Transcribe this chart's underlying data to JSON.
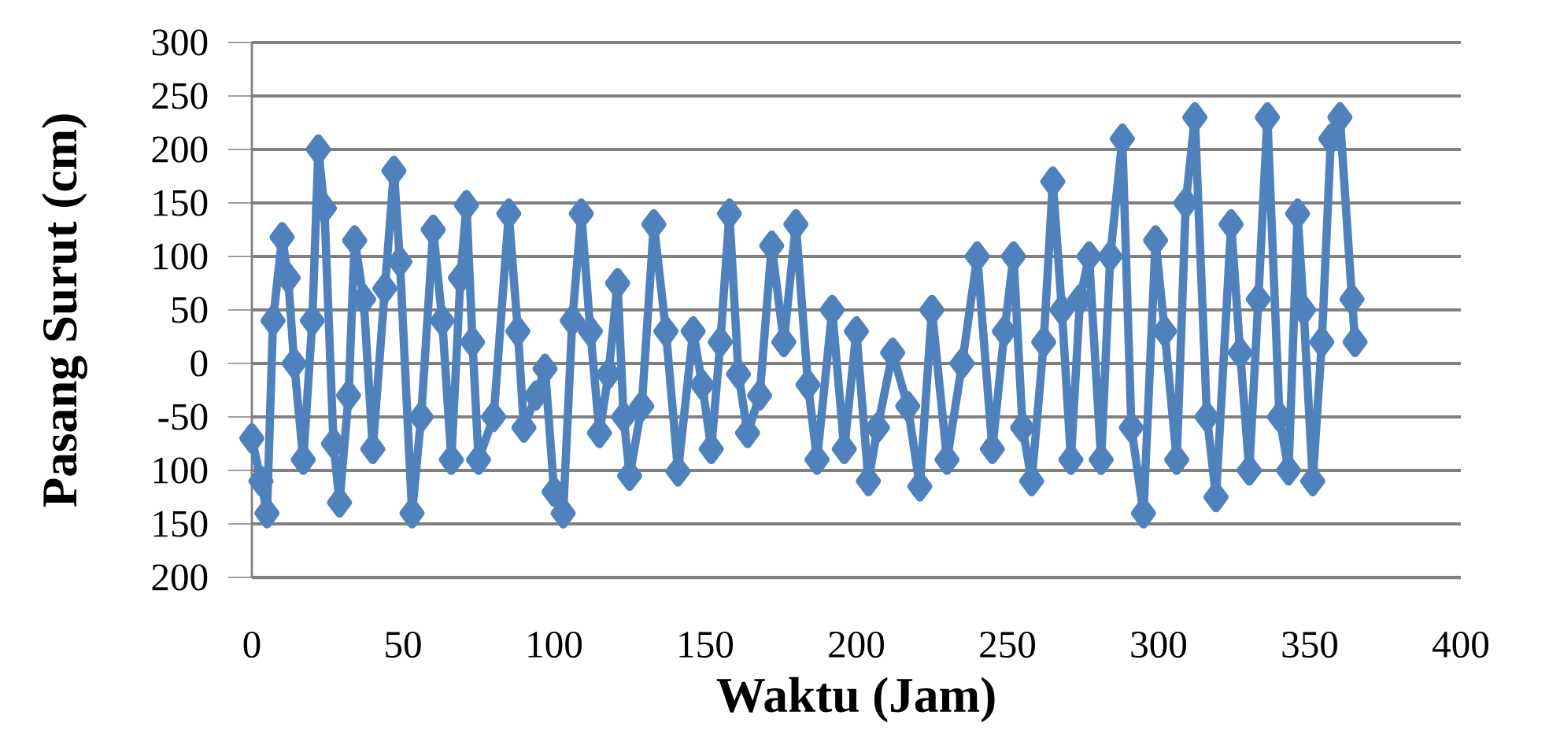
{
  "chart_data": {
    "type": "line",
    "xlabel": "Waktu (Jam)",
    "ylabel": "Pasang Surut (cm)",
    "xlim": [
      0,
      400
    ],
    "xticks": [
      0,
      50,
      100,
      150,
      200,
      250,
      300,
      350,
      400
    ],
    "ylim": [
      -200,
      300
    ],
    "yticks": [
      300,
      250,
      200,
      150,
      100,
      50,
      0,
      -50,
      {
        "value": -100,
        "label": "100"
      },
      {
        "value": -150,
        "label": "150"
      },
      {
        "value": -200,
        "label": "200"
      }
    ],
    "grid": "y",
    "marker": "diamond",
    "line_style": "solid",
    "series": [
      {
        "color": "#4f81bd",
        "x": [
          0,
          3,
          5,
          7,
          10,
          12,
          14,
          17,
          20,
          22,
          24,
          27,
          29,
          32,
          34,
          37,
          40,
          44,
          47,
          49,
          53,
          56,
          60,
          63,
          66,
          69,
          71,
          73,
          75,
          80,
          85,
          88,
          90,
          94,
          97,
          100,
          103,
          106,
          109,
          112,
          115,
          118,
          121,
          123,
          125,
          129,
          133,
          137,
          141,
          146,
          149,
          152,
          155,
          158,
          161,
          164,
          168,
          172,
          176,
          180,
          184,
          187,
          192,
          196,
          200,
          204,
          207,
          212,
          217,
          221,
          225,
          230,
          235,
          240,
          245,
          249,
          252,
          255,
          258,
          262,
          265,
          268,
          271,
          274,
          277,
          281,
          284,
          288,
          291,
          295,
          299,
          302,
          306,
          309,
          312,
          316,
          319,
          324,
          327,
          330,
          333,
          336,
          340,
          343,
          346,
          348,
          351,
          354,
          357,
          360,
          364,
          365
        ],
        "values": [
          -70,
          -110,
          -140,
          40,
          118,
          80,
          0,
          -90,
          40,
          200,
          145,
          -75,
          -130,
          -30,
          115,
          60,
          -80,
          70,
          180,
          95,
          -140,
          -50,
          125,
          40,
          -90,
          80,
          148,
          20,
          -90,
          -50,
          140,
          30,
          -60,
          -30,
          -5,
          -120,
          -140,
          40,
          140,
          30,
          -65,
          -10,
          75,
          -50,
          -105,
          -40,
          130,
          30,
          -101,
          30,
          -20,
          -80,
          20,
          140,
          -10,
          -65,
          -30,
          110,
          20,
          130,
          -20,
          -90,
          50,
          -80,
          30,
          -110,
          -60,
          10,
          -40,
          -115,
          50,
          -90,
          0,
          100,
          -80,
          30,
          100,
          -60,
          -110,
          20,
          170,
          50,
          -90,
          60,
          100,
          -90,
          100,
          210,
          -60,
          -140,
          115,
          30,
          -90,
          150,
          230,
          -50,
          -125,
          130,
          10,
          -100,
          60,
          230,
          -50,
          -100,
          140,
          50,
          -110,
          20,
          210,
          230,
          60,
          20
        ]
      }
    ]
  }
}
